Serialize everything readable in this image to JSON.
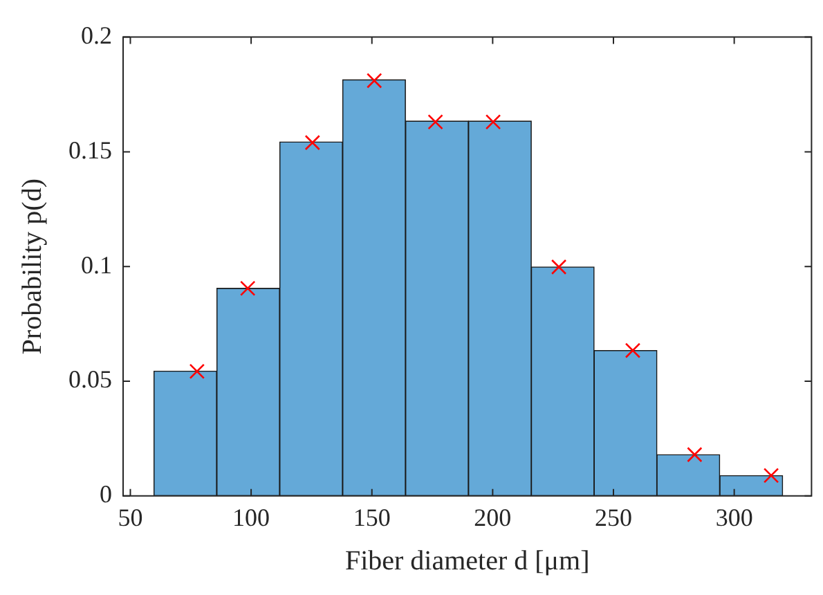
{
  "chart_data": {
    "type": "histogram",
    "xlabel": "Fiber diameter d [μm]",
    "ylabel": "Probability p(d)",
    "bins": [
      59.7,
      85.8,
      111.8,
      137.9,
      163.9,
      190,
      216,
      242,
      268,
      294,
      320.1
    ],
    "values": [
      0.0544,
      0.0905,
      0.1543,
      0.1814,
      0.1634,
      0.1634,
      0.0998,
      0.0634,
      0.018,
      0.0089
    ],
    "color": "#64a9d8",
    "xlim": [
      47,
      332
    ],
    "ylim": [
      0,
      0.2
    ],
    "xticks": [
      50,
      100,
      150,
      200,
      250,
      300
    ],
    "yticks": [
      0,
      0.05,
      0.1,
      0.15,
      0.2
    ],
    "marker": "cross",
    "series": [
      {
        "type": "scatter",
        "color": "#ff0000",
        "x": [
          77.6,
          98.6,
          125.4,
          151,
          176.3,
          200.2,
          227.4,
          258,
          283.6,
          315.3
        ],
        "values": [
          0.0543,
          0.0905,
          0.154,
          0.181,
          0.163,
          0.163,
          0.0998,
          0.0634,
          0.018,
          0.0089
        ]
      }
    ]
  }
}
